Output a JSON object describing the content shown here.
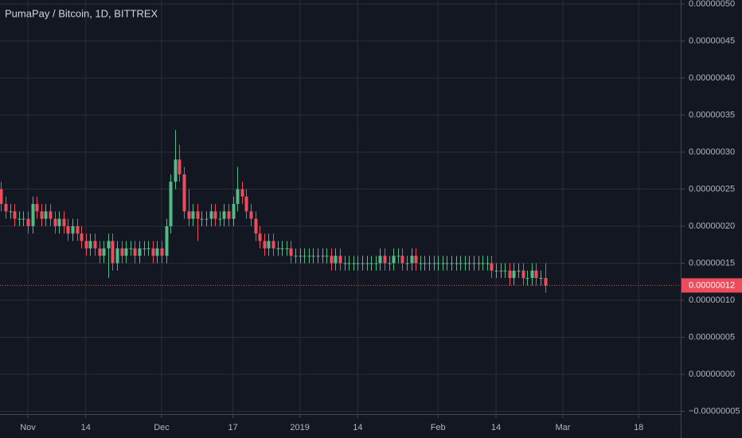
{
  "chart_data": {
    "type": "candlestick",
    "title": "PumaPay / Bitcoin, 1D, BITTREX",
    "up_color": "#53b987",
    "down_color": "#eb4d5c",
    "grid": true,
    "x": [
      "2018-10-26",
      "2018-10-27",
      "2018-10-28",
      "2018-10-29",
      "2018-10-30",
      "2018-10-31",
      "2018-11-01",
      "2018-11-02",
      "2018-11-03",
      "2018-11-04",
      "2018-11-05",
      "2018-11-06",
      "2018-11-07",
      "2018-11-08",
      "2018-11-09",
      "2018-11-10",
      "2018-11-11",
      "2018-11-12",
      "2018-11-13",
      "2018-11-14",
      "2018-11-15",
      "2018-11-16",
      "2018-11-17",
      "2018-11-18",
      "2018-11-19",
      "2018-11-20",
      "2018-11-21",
      "2018-11-22",
      "2018-11-23",
      "2018-11-24",
      "2018-11-25",
      "2018-11-26",
      "2018-11-27",
      "2018-11-28",
      "2018-11-29",
      "2018-11-30",
      "2018-12-01",
      "2018-12-02",
      "2018-12-03",
      "2018-12-04",
      "2018-12-05",
      "2018-12-06",
      "2018-12-07",
      "2018-12-08",
      "2018-12-09",
      "2018-12-10",
      "2018-12-11",
      "2018-12-12",
      "2018-12-13",
      "2018-12-14",
      "2018-12-15",
      "2018-12-16",
      "2018-12-17",
      "2018-12-18",
      "2018-12-19",
      "2018-12-20",
      "2018-12-21",
      "2018-12-22",
      "2018-12-23",
      "2018-12-24",
      "2018-12-25",
      "2018-12-26",
      "2018-12-27",
      "2018-12-28",
      "2018-12-29",
      "2018-12-30",
      "2018-12-31",
      "2019-01-01",
      "2019-01-02",
      "2019-01-03",
      "2019-01-04",
      "2019-01-05",
      "2019-01-06",
      "2019-01-07",
      "2019-01-08",
      "2019-01-09",
      "2019-01-10",
      "2019-01-11",
      "2019-01-12",
      "2019-01-13",
      "2019-01-14",
      "2019-01-15",
      "2019-01-16",
      "2019-01-17",
      "2019-01-18",
      "2019-01-19",
      "2019-01-20",
      "2019-01-21",
      "2019-01-22",
      "2019-01-23",
      "2019-01-24",
      "2019-01-25",
      "2019-01-26",
      "2019-01-27",
      "2019-01-28",
      "2019-01-29",
      "2019-01-30",
      "2019-01-31",
      "2019-02-01",
      "2019-02-02",
      "2019-02-03",
      "2019-02-04",
      "2019-02-05",
      "2019-02-06",
      "2019-02-07",
      "2019-02-08",
      "2019-02-09",
      "2019-02-10",
      "2019-02-11",
      "2019-02-12",
      "2019-02-13",
      "2019-02-14",
      "2019-02-15",
      "2019-02-16",
      "2019-02-17",
      "2019-02-18",
      "2019-02-19",
      "2019-02-20",
      "2019-02-21",
      "2019-02-22",
      "2019-02-23",
      "2019-02-24",
      "2019-02-25"
    ],
    "open": [
      2.5e-07,
      2.3e-07,
      2.2e-07,
      2.2e-07,
      2.1e-07,
      2.1e-07,
      2.1e-07,
      2e-07,
      2.3e-07,
      2.2e-07,
      2.1e-07,
      2.2e-07,
      2.1e-07,
      2e-07,
      2.1e-07,
      2e-07,
      1.9e-07,
      2e-07,
      1.9e-07,
      1.8e-07,
      1.7e-07,
      1.8e-07,
      1.7e-07,
      1.6e-07,
      1.7e-07,
      1.8e-07,
      1.5e-07,
      1.7e-07,
      1.6e-07,
      1.7e-07,
      1.7e-07,
      1.6e-07,
      1.7e-07,
      1.7e-07,
      1.7e-07,
      1.6e-07,
      1.7e-07,
      1.6e-07,
      2e-07,
      2.6e-07,
      2.9e-07,
      2.7e-07,
      2.2e-07,
      2.1e-07,
      2.2e-07,
      2.1e-07,
      2.1e-07,
      2.1e-07,
      2.2e-07,
      2.1e-07,
      2.1e-07,
      2.2e-07,
      2.1e-07,
      2.3e-07,
      2.5e-07,
      2.4e-07,
      2.2e-07,
      2.1e-07,
      1.9e-07,
      1.8e-07,
      1.7e-07,
      1.8e-07,
      1.7e-07,
      1.7e-07,
      1.7e-07,
      1.7e-07,
      1.6e-07,
      1.6e-07,
      1.6e-07,
      1.6e-07,
      1.6e-07,
      1.6e-07,
      1.6e-07,
      1.6e-07,
      1.6e-07,
      1.5e-07,
      1.6e-07,
      1.5e-07,
      1.5e-07,
      1.5e-07,
      1.5e-07,
      1.5e-07,
      1.5e-07,
      1.5e-07,
      1.5e-07,
      1.5e-07,
      1.6e-07,
      1.5e-07,
      1.5e-07,
      1.6e-07,
      1.6e-07,
      1.5e-07,
      1.5e-07,
      1.6e-07,
      1.5e-07,
      1.5e-07,
      1.5e-07,
      1.5e-07,
      1.5e-07,
      1.5e-07,
      1.5e-07,
      1.5e-07,
      1.5e-07,
      1.5e-07,
      1.5e-07,
      1.5e-07,
      1.5e-07,
      1.5e-07,
      1.5e-07,
      1.5e-07,
      1.5e-07,
      1.4e-07,
      1.4e-07,
      1.4e-07,
      1.4e-07,
      1.3e-07,
      1.4e-07,
      1.4e-07,
      1.3e-07,
      1.3e-07,
      1.4e-07,
      1.3e-07,
      1.3e-07
    ],
    "high": [
      2.6e-07,
      2.4e-07,
      2.3e-07,
      2.3e-07,
      2.2e-07,
      2.2e-07,
      2.2e-07,
      2.4e-07,
      2.4e-07,
      2.3e-07,
      2.3e-07,
      2.3e-07,
      2.2e-07,
      2.2e-07,
      2.2e-07,
      2.1e-07,
      2.1e-07,
      2.1e-07,
      2e-07,
      1.9e-07,
      1.9e-07,
      1.9e-07,
      1.8e-07,
      1.8e-07,
      1.9e-07,
      1.9e-07,
      1.8e-07,
      1.8e-07,
      1.8e-07,
      1.8e-07,
      1.8e-07,
      1.8e-07,
      1.8e-07,
      1.8e-07,
      1.8e-07,
      1.8e-07,
      1.8e-07,
      2.1e-07,
      2.7e-07,
      3.3e-07,
      3.1e-07,
      2.8e-07,
      2.5e-07,
      2.3e-07,
      2.3e-07,
      2.2e-07,
      2.2e-07,
      2.3e-07,
      2.3e-07,
      2.2e-07,
      2.3e-07,
      2.3e-07,
      2.4e-07,
      2.8e-07,
      2.6e-07,
      2.5e-07,
      2.3e-07,
      2.2e-07,
      2e-07,
      1.9e-07,
      1.9e-07,
      1.9e-07,
      1.8e-07,
      1.8e-07,
      1.8e-07,
      1.8e-07,
      1.7e-07,
      1.7e-07,
      1.7e-07,
      1.7e-07,
      1.7e-07,
      1.7e-07,
      1.7e-07,
      1.7e-07,
      1.7e-07,
      1.7e-07,
      1.7e-07,
      1.6e-07,
      1.6e-07,
      1.6e-07,
      1.6e-07,
      1.6e-07,
      1.6e-07,
      1.6e-07,
      1.6e-07,
      1.7e-07,
      1.7e-07,
      1.6e-07,
      1.7e-07,
      1.7e-07,
      1.7e-07,
      1.6e-07,
      1.7e-07,
      1.7e-07,
      1.6e-07,
      1.6e-07,
      1.6e-07,
      1.6e-07,
      1.6e-07,
      1.6e-07,
      1.6e-07,
      1.6e-07,
      1.6e-07,
      1.6e-07,
      1.6e-07,
      1.6e-07,
      1.6e-07,
      1.6e-07,
      1.6e-07,
      1.6e-07,
      1.6e-07,
      1.5e-07,
      1.5e-07,
      1.5e-07,
      1.5e-07,
      1.5e-07,
      1.5e-07,
      1.5e-07,
      1.4e-07,
      1.5e-07,
      1.5e-07,
      1.4e-07,
      1.5e-07
    ],
    "low": [
      2.2e-07,
      2.1e-07,
      2.1e-07,
      2e-07,
      2e-07,
      2e-07,
      1.9e-07,
      1.9e-07,
      2.1e-07,
      2e-07,
      2e-07,
      2e-07,
      1.9e-07,
      1.9e-07,
      1.9e-07,
      1.8e-07,
      1.8e-07,
      1.8e-07,
      1.7e-07,
      1.6e-07,
      1.6e-07,
      1.6e-07,
      1.5e-07,
      1.5e-07,
      1.3e-07,
      1.4e-07,
      1.4e-07,
      1.5e-07,
      1.5e-07,
      1.6e-07,
      1.5e-07,
      1.5e-07,
      1.6e-07,
      1.6e-07,
      1.5e-07,
      1.5e-07,
      1.5e-07,
      1.5e-07,
      1.9e-07,
      2.5e-07,
      2.6e-07,
      2.1e-07,
      2e-07,
      2e-07,
      1.8e-07,
      2e-07,
      2e-07,
      2e-07,
      2e-07,
      2e-07,
      2e-07,
      2e-07,
      2e-07,
      2.2e-07,
      2.3e-07,
      2.1e-07,
      2e-07,
      1.8e-07,
      1.7e-07,
      1.6e-07,
      1.6e-07,
      1.6e-07,
      1.6e-07,
      1.6e-07,
      1.6e-07,
      1.5e-07,
      1.5e-07,
      1.5e-07,
      1.5e-07,
      1.5e-07,
      1.5e-07,
      1.5e-07,
      1.5e-07,
      1.5e-07,
      1.4e-07,
      1.4e-07,
      1.4e-07,
      1.4e-07,
      1.4e-07,
      1.4e-07,
      1.4e-07,
      1.4e-07,
      1.4e-07,
      1.4e-07,
      1.4e-07,
      1.4e-07,
      1.4e-07,
      1.4e-07,
      1.4e-07,
      1.5e-07,
      1.4e-07,
      1.4e-07,
      1.4e-07,
      1.4e-07,
      1.4e-07,
      1.4e-07,
      1.4e-07,
      1.4e-07,
      1.4e-07,
      1.4e-07,
      1.4e-07,
      1.4e-07,
      1.4e-07,
      1.4e-07,
      1.4e-07,
      1.4e-07,
      1.4e-07,
      1.4e-07,
      1.4e-07,
      1.4e-07,
      1.3e-07,
      1.3e-07,
      1.3e-07,
      1.3e-07,
      1.2e-07,
      1.2e-07,
      1.3e-07,
      1.2e-07,
      1.2e-07,
      1.2e-07,
      1.2e-07,
      1.2e-07,
      1.1e-07
    ],
    "close": [
      2.3e-07,
      2.2e-07,
      2.2e-07,
      2.1e-07,
      2.1e-07,
      2.1e-07,
      2e-07,
      2.3e-07,
      2.2e-07,
      2.1e-07,
      2.2e-07,
      2.1e-07,
      2e-07,
      2.1e-07,
      2e-07,
      1.9e-07,
      2e-07,
      1.9e-07,
      1.8e-07,
      1.7e-07,
      1.8e-07,
      1.7e-07,
      1.6e-07,
      1.7e-07,
      1.8e-07,
      1.5e-07,
      1.7e-07,
      1.6e-07,
      1.7e-07,
      1.7e-07,
      1.6e-07,
      1.7e-07,
      1.7e-07,
      1.7e-07,
      1.6e-07,
      1.7e-07,
      1.6e-07,
      2e-07,
      2.6e-07,
      2.9e-07,
      2.7e-07,
      2.2e-07,
      2.1e-07,
      2.2e-07,
      2.1e-07,
      2.1e-07,
      2.1e-07,
      2.2e-07,
      2.1e-07,
      2.1e-07,
      2.2e-07,
      2.1e-07,
      2.3e-07,
      2.5e-07,
      2.4e-07,
      2.2e-07,
      2.1e-07,
      1.9e-07,
      1.8e-07,
      1.7e-07,
      1.8e-07,
      1.7e-07,
      1.7e-07,
      1.7e-07,
      1.7e-07,
      1.6e-07,
      1.6e-07,
      1.6e-07,
      1.6e-07,
      1.6e-07,
      1.6e-07,
      1.6e-07,
      1.6e-07,
      1.6e-07,
      1.5e-07,
      1.6e-07,
      1.5e-07,
      1.5e-07,
      1.5e-07,
      1.5e-07,
      1.5e-07,
      1.5e-07,
      1.5e-07,
      1.5e-07,
      1.5e-07,
      1.6e-07,
      1.5e-07,
      1.5e-07,
      1.6e-07,
      1.6e-07,
      1.5e-07,
      1.5e-07,
      1.6e-07,
      1.5e-07,
      1.5e-07,
      1.5e-07,
      1.5e-07,
      1.5e-07,
      1.5e-07,
      1.5e-07,
      1.5e-07,
      1.5e-07,
      1.5e-07,
      1.5e-07,
      1.5e-07,
      1.5e-07,
      1.5e-07,
      1.5e-07,
      1.5e-07,
      1.5e-07,
      1.4e-07,
      1.4e-07,
      1.4e-07,
      1.4e-07,
      1.3e-07,
      1.4e-07,
      1.4e-07,
      1.3e-07,
      1.3e-07,
      1.4e-07,
      1.3e-07,
      1.3e-07,
      1.2e-07
    ],
    "last_price": {
      "value": 1.2e-07,
      "label": "0.00000012"
    },
    "ylim": [
      -5e-08,
      5e-07
    ],
    "yticks": [
      {
        "value": -5e-08,
        "label": "−0.00000005"
      },
      {
        "value": 0,
        "label": "0.00000000"
      },
      {
        "value": 5e-08,
        "label": "0.00000005"
      },
      {
        "value": 1e-07,
        "label": "0.00000010"
      },
      {
        "value": 1.5e-07,
        "label": "0.00000015"
      },
      {
        "value": 2e-07,
        "label": "0.00000020"
      },
      {
        "value": 2.5e-07,
        "label": "0.00000025"
      },
      {
        "value": 3e-07,
        "label": "0.00000030"
      },
      {
        "value": 3.5e-07,
        "label": "0.00000035"
      },
      {
        "value": 4e-07,
        "label": "0.00000040"
      },
      {
        "value": 4.5e-07,
        "label": "0.00000045"
      },
      {
        "value": 5e-07,
        "label": "0.00000050"
      }
    ],
    "xticks": [
      {
        "value": "2018-11-01",
        "label": "Nov"
      },
      {
        "value": "2018-11-14",
        "label": "14"
      },
      {
        "value": "2018-12-01",
        "label": "Dec"
      },
      {
        "value": "2018-12-17",
        "label": "17"
      },
      {
        "value": "2019-01-01",
        "label": "2019"
      },
      {
        "value": "2019-01-14",
        "label": "14"
      },
      {
        "value": "2019-02-01",
        "label": "Feb"
      },
      {
        "value": "2019-02-14",
        "label": "14"
      },
      {
        "value": "2019-03-01",
        "label": "Mar"
      },
      {
        "value": "2019-03-18",
        "label": "18"
      }
    ]
  }
}
